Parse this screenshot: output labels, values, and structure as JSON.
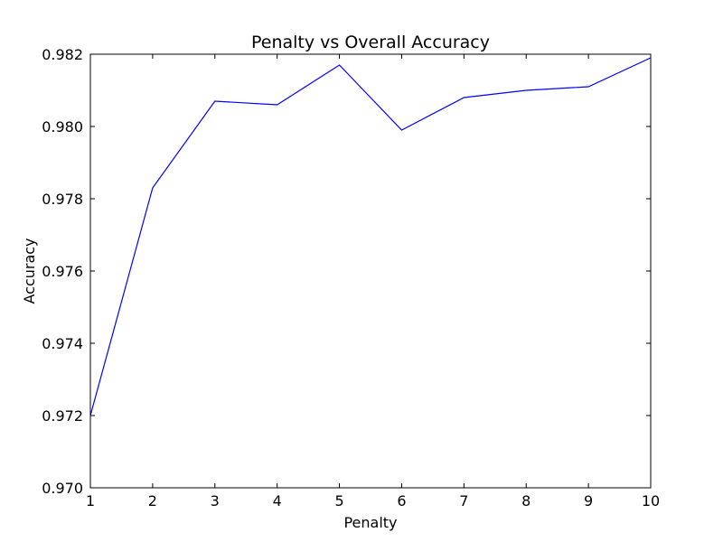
{
  "chart_data": {
    "type": "line",
    "title": "Penalty vs Overall Accuracy",
    "xlabel": "Penalty",
    "ylabel": "Accuracy",
    "xlim": [
      1,
      10
    ],
    "ylim": [
      0.97,
      0.982
    ],
    "x_ticks": [
      1,
      2,
      3,
      4,
      5,
      6,
      7,
      8,
      9,
      10
    ],
    "x_tick_labels": [
      "1",
      "2",
      "3",
      "4",
      "5",
      "6",
      "7",
      "8",
      "9",
      "10"
    ],
    "y_ticks": [
      0.97,
      0.972,
      0.974,
      0.976,
      0.978,
      0.98,
      0.982
    ],
    "y_tick_labels": [
      "0.970",
      "0.972",
      "0.974",
      "0.976",
      "0.978",
      "0.980",
      "0.982"
    ],
    "grid": false,
    "series": [
      {
        "color": "#0000ff",
        "x": [
          1,
          2,
          3,
          4,
          5,
          6,
          7,
          8,
          9,
          10
        ],
        "y": [
          0.972,
          0.9783,
          0.9807,
          0.9806,
          0.9817,
          0.9799,
          0.9808,
          0.981,
          0.9811,
          0.9819
        ]
      }
    ]
  }
}
